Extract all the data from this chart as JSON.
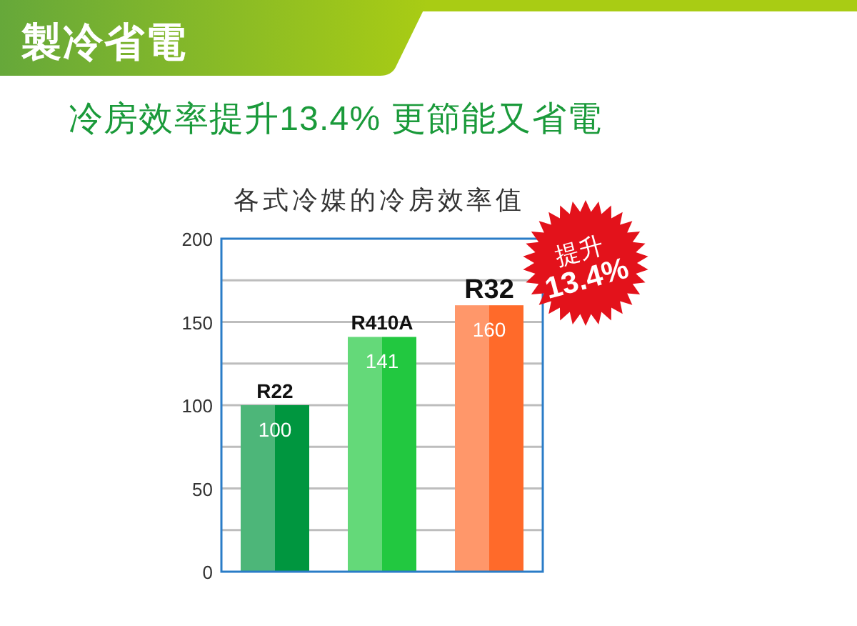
{
  "chart_data": [
    {
      "type": "other",
      "title": "製冷省電",
      "subtitle": "冷房效率提升13.4% 更節能又省電"
    },
    {
      "type": "bar",
      "title": "各式冷媒的冷房效率值",
      "categories": [
        "R22",
        "R410A",
        "R32"
      ],
      "values": [
        100,
        141,
        160
      ],
      "colors": [
        "#00963f",
        "#22c840",
        "#ff6a2a"
      ],
      "data_labels": true,
      "ylim": [
        0,
        200
      ],
      "yticks": [
        0,
        {
          "value": 25,
          "label": null
        },
        50,
        {
          "value": 75,
          "label": null
        },
        100,
        {
          "value": 125,
          "label": null
        },
        150,
        {
          "value": 175,
          "label": null
        },
        200
      ],
      "grid": "y",
      "annotations": [
        "提升",
        "13.4%"
      ]
    }
  ]
}
